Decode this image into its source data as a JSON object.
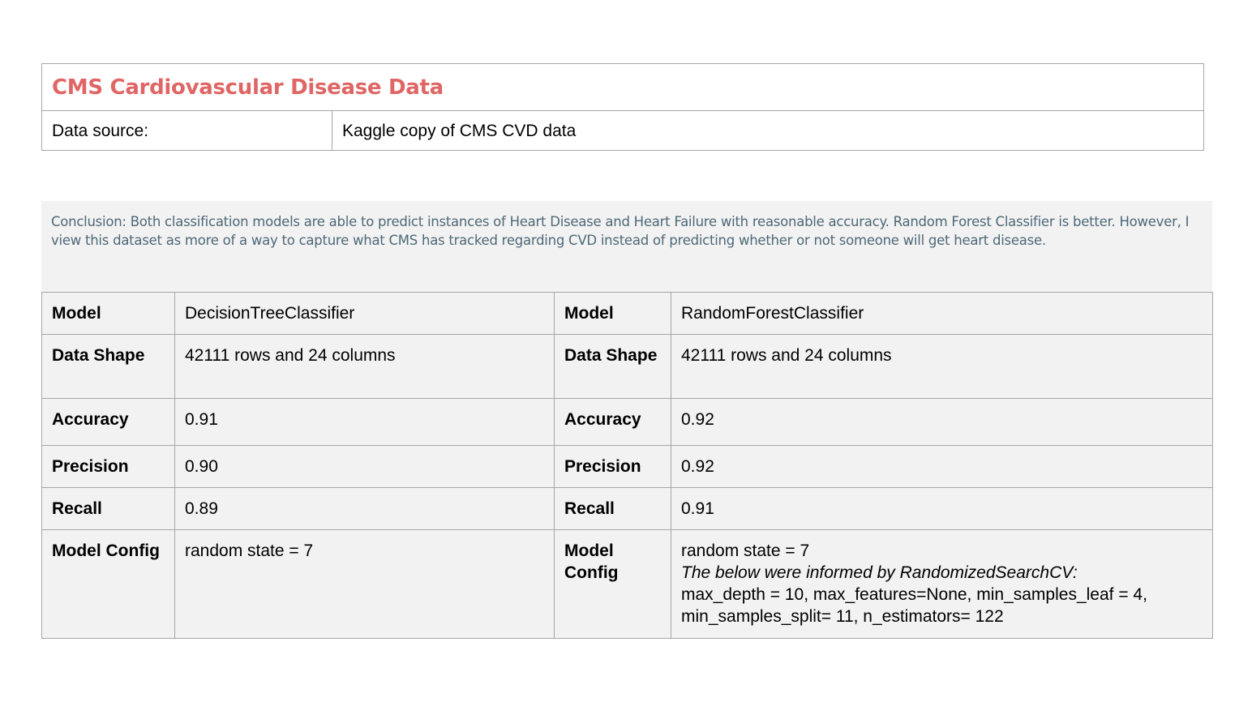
{
  "header": {
    "title": "CMS Cardiovascular Disease Data",
    "source_label": "Data source:",
    "source_value": "Kaggle copy of CMS CVD data"
  },
  "conclusion": "Conclusion: Both classification models are able to predict instances of Heart Disease and Heart Failure with reasonable accuracy. Random Forest Classifier is better. However, I view this dataset as more of a way to capture what CMS has tracked regarding CVD instead of  predicting whether or not someone will get heart disease.",
  "table": {
    "labels": {
      "model": "Model",
      "shape": "Data Shape",
      "accuracy": "Accuracy",
      "precision": "Precision",
      "recall": "Recall",
      "config": "Model Config"
    },
    "left": {
      "model": "DecisionTreeClassifier",
      "shape": "42111 rows and 24 columns",
      "accuracy": "0.91",
      "precision": "0.90",
      "recall": "0.89",
      "config": "random state = 7"
    },
    "right": {
      "model": "RandomForestClassifier",
      "shape": "42111 rows and 24 columns",
      "accuracy": "0.92",
      "precision": "0.92",
      "recall": "0.91",
      "config_line1": "random state = 7",
      "config_note": "The below were informed by RandomizedSearchCV:",
      "config_params": "max_depth = 10, max_features=None, min_samples_leaf = 4, min_samples_split= 11, n_estimators= 122"
    }
  }
}
